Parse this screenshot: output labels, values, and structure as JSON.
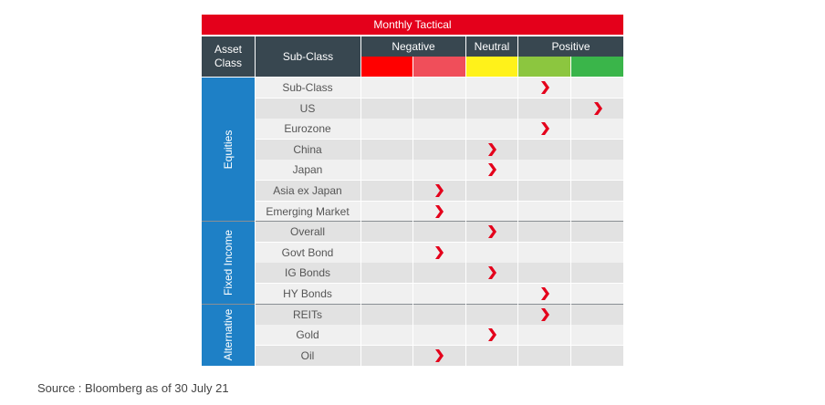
{
  "title": "Monthly Tactical",
  "headers": {
    "asset_class": "Asset\nClass",
    "sub_class": "Sub-Class",
    "negative": "Negative",
    "neutral": "Neutral",
    "positive": "Positive"
  },
  "scale_colors": [
    "#ff0000",
    "#f04e5a",
    "#fff21a",
    "#8cc63f",
    "#3ab54a"
  ],
  "marker_color": "#e4001b",
  "groups": [
    {
      "name": "Equities",
      "rows": [
        {
          "label": "Sub-Class",
          "level": 4
        },
        {
          "label": "US",
          "level": 5
        },
        {
          "label": "Eurozone",
          "level": 4
        },
        {
          "label": "China",
          "level": 3
        },
        {
          "label": "Japan",
          "level": 3
        },
        {
          "label": "Asia ex Japan",
          "level": 2
        },
        {
          "label": "Emerging Market",
          "level": 2
        }
      ]
    },
    {
      "name": "Fixed Income",
      "rows": [
        {
          "label": "Overall",
          "level": 3
        },
        {
          "label": "Govt Bond",
          "level": 2
        },
        {
          "label": "IG Bonds",
          "level": 3
        },
        {
          "label": "HY Bonds",
          "level": 4
        }
      ]
    },
    {
      "name": "Alternative",
      "rows": [
        {
          "label": "REITs",
          "level": 4
        },
        {
          "label": "Gold",
          "level": 3
        },
        {
          "label": "Oil",
          "level": 2
        }
      ]
    }
  ],
  "source": "Source : Bloomberg as of 30 July 21"
}
